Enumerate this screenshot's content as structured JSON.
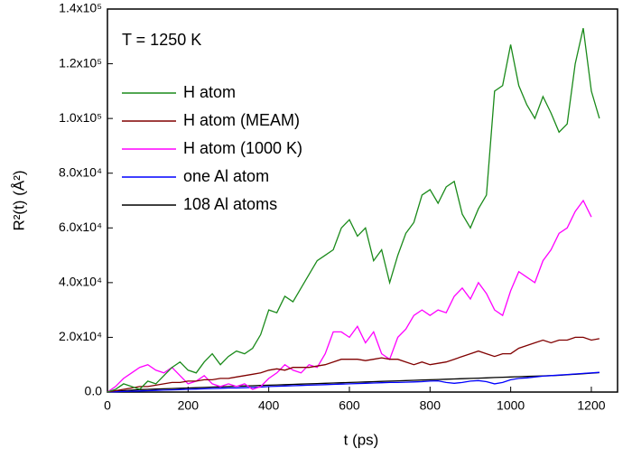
{
  "chart_data": {
    "type": "line",
    "annotation": "T = 1250 K",
    "xlabel": "t (ps)",
    "ylabel": "R²(t) (Å²)",
    "x": [
      0,
      20,
      40,
      60,
      80,
      100,
      120,
      140,
      160,
      180,
      200,
      220,
      240,
      260,
      280,
      300,
      320,
      340,
      360,
      380,
      400,
      420,
      440,
      460,
      480,
      500,
      520,
      540,
      560,
      580,
      600,
      620,
      640,
      660,
      680,
      700,
      720,
      740,
      760,
      780,
      800,
      820,
      840,
      860,
      880,
      900,
      920,
      940,
      960,
      980,
      1000,
      1020,
      1040,
      1060,
      1080,
      1100,
      1120,
      1140,
      1160,
      1180,
      1200,
      1220
    ],
    "series": [
      {
        "name": "H atom",
        "color": "#1a8a1a",
        "values": [
          0,
          1000,
          3000,
          2000,
          1000,
          4000,
          3000,
          6000,
          9000,
          11000,
          8000,
          7000,
          11000,
          14000,
          10000,
          13000,
          15000,
          14000,
          16000,
          21000,
          30000,
          29000,
          35000,
          33000,
          38000,
          43000,
          48000,
          50000,
          52000,
          60000,
          63000,
          57000,
          60000,
          48000,
          52000,
          40000,
          50000,
          58000,
          62000,
          72000,
          74000,
          69000,
          75000,
          77000,
          65000,
          60000,
          67000,
          72000,
          110000,
          112000,
          127000,
          112000,
          105000,
          100000,
          108000,
          102000,
          95000,
          98000,
          120000,
          133000,
          110000,
          100000
        ]
      },
      {
        "name": "H atom (MEAM)",
        "color": "#800000",
        "values": [
          0,
          500,
          1000,
          1500,
          2000,
          2000,
          2500,
          3000,
          3500,
          3500,
          4000,
          4000,
          4500,
          4500,
          5000,
          5000,
          5500,
          6000,
          6500,
          7000,
          8000,
          8500,
          8000,
          9000,
          9000,
          9000,
          9500,
          10000,
          11000,
          12000,
          12000,
          12000,
          11500,
          12000,
          12500,
          12000,
          12000,
          11000,
          10000,
          11000,
          10000,
          10500,
          11000,
          12000,
          13000,
          14000,
          15000,
          14000,
          13000,
          14000,
          14000,
          16000,
          17000,
          18000,
          19000,
          18000,
          19000,
          19000,
          20000,
          20000,
          19000,
          19500
        ]
      },
      {
        "name": "H atom (1000 K)",
        "color": "#ff00ff",
        "values": [
          0,
          2000,
          5000,
          7000,
          9000,
          10000,
          8000,
          7000,
          9000,
          6000,
          3000,
          4000,
          6000,
          3000,
          2000,
          3000,
          2000,
          3000,
          1000,
          2000,
          5000,
          7000,
          10000,
          8000,
          7000,
          10000,
          9000,
          14000,
          22000,
          22000,
          20000,
          24000,
          18000,
          22000,
          14000,
          12000,
          20000,
          23000,
          28000,
          30000,
          28000,
          30000,
          29000,
          35000,
          38000,
          34000,
          40000,
          36000,
          30000,
          28000,
          37000,
          44000,
          42000,
          40000,
          48000,
          52000,
          58000,
          60000,
          66000,
          70000,
          64000,
          null
        ]
      },
      {
        "name": "one Al atom",
        "color": "#0000ff",
        "values": [
          0,
          100,
          200,
          300,
          400,
          500,
          600,
          700,
          800,
          900,
          1000,
          1100,
          1200,
          1300,
          1400,
          1500,
          1500,
          1600,
          1700,
          1800,
          2000,
          2100,
          2200,
          2300,
          2400,
          2500,
          2600,
          2700,
          2800,
          2900,
          3000,
          3100,
          3200,
          3300,
          3400,
          3500,
          3500,
          3600,
          3700,
          3800,
          4000,
          4100,
          3500,
          3200,
          3500,
          4000,
          4200,
          3800,
          3000,
          3500,
          4500,
          5000,
          5200,
          5500,
          5800,
          6000,
          6200,
          6400,
          6600,
          6800,
          7000,
          7200
        ]
      },
      {
        "name": "108 Al atoms",
        "color": "#000000",
        "values": [
          0,
          300,
          500,
          700,
          900,
          1000,
          1100,
          1200,
          1300,
          1400,
          1500,
          1600,
          1700,
          1800,
          1900,
          2000,
          2100,
          2200,
          2300,
          2400,
          2500,
          2600,
          2700,
          2800,
          2900,
          3000,
          3100,
          3200,
          3300,
          3400,
          3500,
          3600,
          3700,
          3800,
          3900,
          4000,
          4100,
          4200,
          4300,
          4400,
          4500,
          4600,
          4700,
          4800,
          4900,
          5000,
          5100,
          5200,
          5300,
          5400,
          5500,
          5600,
          5700,
          5800,
          5900,
          6000,
          6100,
          6300,
          6500,
          6700,
          6900,
          7100
        ]
      }
    ],
    "xlim": [
      0,
      1265
    ],
    "ylim": [
      0,
      140000
    ],
    "xticks": [
      0,
      200,
      400,
      600,
      800,
      1000,
      1200
    ],
    "yticks": [
      {
        "value": 0,
        "label": "0.0"
      },
      {
        "value": 20000,
        "label": "2.0x10⁴"
      },
      {
        "value": 40000,
        "label": "4.0x10⁴"
      },
      {
        "value": 60000,
        "label": "6.0x10⁴"
      },
      {
        "value": 80000,
        "label": "8.0x10⁴"
      },
      {
        "value": 100000,
        "label": "1.0x10⁵"
      },
      {
        "value": 120000,
        "label": "1.2x10⁵"
      },
      {
        "value": 140000,
        "label": "1.4x10⁵"
      }
    ],
    "legend": "upper left"
  }
}
